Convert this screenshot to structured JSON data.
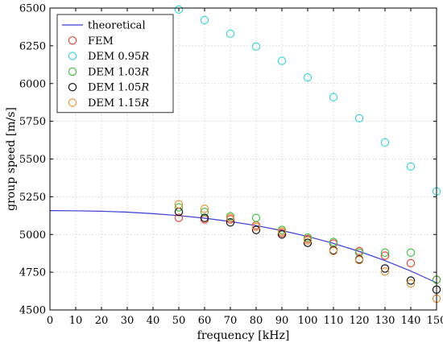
{
  "chart_data": {
    "type": "scatter",
    "xlabel": "frequency [kHz]",
    "ylabel": "group speed [m/s]",
    "xlim": [
      0,
      150
    ],
    "ylim": [
      4500,
      6500
    ],
    "x_ticks": [
      0,
      10,
      20,
      30,
      40,
      50,
      60,
      70,
      80,
      90,
      100,
      110,
      120,
      130,
      140,
      150
    ],
    "y_ticks": [
      4500,
      4750,
      5000,
      5250,
      5500,
      5750,
      6000,
      6250,
      6500
    ],
    "grid": true,
    "legend_position": "top-left",
    "x": [
      50,
      60,
      70,
      80,
      90,
      100,
      110,
      120,
      130,
      140,
      150
    ],
    "theoretical": {
      "name": "theoretical",
      "color": "#3a3ad6",
      "x": [
        0,
        10,
        20,
        30,
        40,
        50,
        60,
        70,
        80,
        90,
        100,
        110,
        120,
        130,
        140,
        150
      ],
      "values": [
        5158,
        5157,
        5154,
        5148,
        5138,
        5125,
        5108,
        5086,
        5059,
        5026,
        4987,
        4941,
        4888,
        4827,
        4758,
        4680
      ]
    },
    "series": [
      {
        "name": "FEM",
        "color": "#e8463c",
        "values": [
          5110,
          5100,
          5100,
          5060,
          5010,
          4970,
          4940,
          4890,
          4860,
          4810,
          4700
        ]
      },
      {
        "name": "DEM 0.95",
        "name_suffix": "R",
        "color": "#3ed6d8",
        "values": [
          6490,
          6420,
          6330,
          6245,
          6150,
          6040,
          5910,
          5770,
          5610,
          5450,
          5285
        ]
      },
      {
        "name": "DEM 1.03",
        "name_suffix": "R",
        "color": "#44c244",
        "values": [
          5180,
          5150,
          5120,
          5110,
          5030,
          4980,
          4950,
          4880,
          4880,
          4880,
          4700
        ]
      },
      {
        "name": "DEM 1.05",
        "name_suffix": "R",
        "color": "#111111",
        "values": [
          5150,
          5110,
          5080,
          5030,
          5000,
          4945,
          4895,
          4835,
          4775,
          4695,
          4635
        ]
      },
      {
        "name": "DEM 1.15",
        "name_suffix": "R",
        "color": "#e8943a",
        "values": [
          5200,
          5170,
          5110,
          5050,
          5020,
          4960,
          4890,
          4830,
          4755,
          4675,
          4575
        ]
      }
    ]
  }
}
